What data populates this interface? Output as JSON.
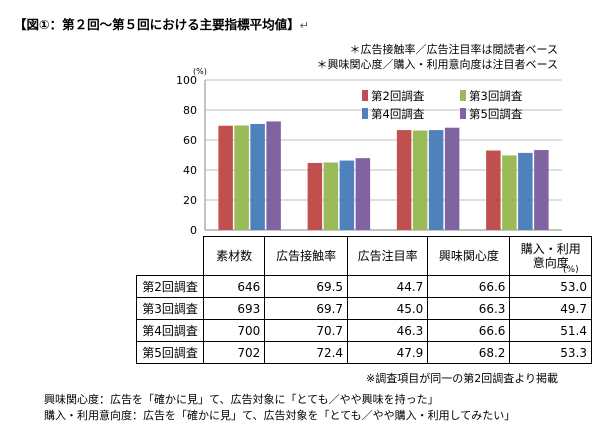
{
  "header": {
    "title": "【図①：第２回～第５回における主要指標平均値】",
    "title_mark": "↵"
  },
  "notes_top": [
    "＊広告接触率／広告注目率は閲読者ベース",
    "＊興味関心度／購入・利用意向度は注目者ベース"
  ],
  "chart_data": {
    "type": "bar",
    "categories": [
      "広告接触率",
      "広告注目率",
      "興味関心度",
      "購入・利用意向度"
    ],
    "series": [
      {
        "name": "第2回調査",
        "values": [
          69.5,
          44.7,
          66.6,
          53.0
        ],
        "color": "#c0504d"
      },
      {
        "name": "第3回調査",
        "values": [
          69.7,
          45.0,
          66.3,
          49.7
        ],
        "color": "#9bbb59"
      },
      {
        "name": "第4回調査",
        "values": [
          70.7,
          46.3,
          66.6,
          51.4
        ],
        "color": "#4f81bd"
      },
      {
        "name": "第5回調査",
        "values": [
          72.4,
          47.9,
          68.2,
          53.3
        ],
        "color": "#8064a2"
      }
    ],
    "ylim": [
      0,
      100
    ],
    "yticks": [
      0,
      20,
      40,
      60,
      80,
      100
    ],
    "ylabel": "(%)",
    "grid": true,
    "legend": "top-right"
  },
  "table": {
    "headers": [
      "素材数",
      "広告接触率",
      "広告注目率",
      "興味関心度",
      "購入・利用意向度"
    ],
    "header_last_lines": [
      "購入・利用",
      "意向度"
    ],
    "rows": [
      {
        "label": "第2回調査",
        "cells": [
          "646",
          "69.5",
          "44.7",
          "66.6",
          "53.0"
        ]
      },
      {
        "label": "第3回調査",
        "cells": [
          "693",
          "69.7",
          "45.0",
          "66.3",
          "49.7"
        ]
      },
      {
        "label": "第4回調査",
        "cells": [
          "700",
          "70.7",
          "46.3",
          "66.6",
          "51.4"
        ]
      },
      {
        "label": "第5回調査",
        "cells": [
          "702",
          "72.4",
          "47.9",
          "68.2",
          "53.3"
        ]
      }
    ],
    "unit": "(%)"
  },
  "footnotes": {
    "survey_note": "※調査項目が同一の第2回調査より掲載",
    "lines": [
      "興味関心度：広告を「確かに見」て、広告対象に「とても／やや興味を持った」",
      "購入・利用意向度：広告を「確かに見」て、広告対象を「とても／やや購入・利用してみたい」"
    ]
  }
}
